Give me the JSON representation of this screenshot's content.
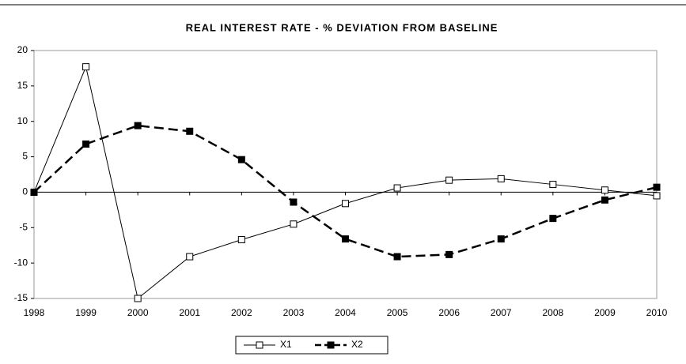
{
  "chart_data": {
    "type": "line",
    "title": "REAL INTEREST RATE - % DEVIATION FROM BASELINE",
    "x": [
      1998,
      1999,
      2000,
      2001,
      2002,
      2003,
      2004,
      2005,
      2006,
      2007,
      2008,
      2009,
      2010
    ],
    "xlim": [
      1998,
      2010
    ],
    "xticks": [
      1998,
      1999,
      2000,
      2001,
      2002,
      2003,
      2004,
      2005,
      2006,
      2007,
      2008,
      2009,
      2010
    ],
    "ylim": [
      -15,
      20
    ],
    "yticks": [
      20,
      15,
      10,
      5,
      0,
      -5,
      -10,
      -15
    ],
    "grid": false,
    "legend": "bottom",
    "series": [
      {
        "name": "X1",
        "color": "#000000",
        "dashed": false,
        "marker_filled": false,
        "values": [
          0,
          17.7,
          -15,
          -9.1,
          -6.7,
          -4.5,
          -1.6,
          0.6,
          1.7,
          1.9,
          1.1,
          0.3,
          -0.5
        ]
      },
      {
        "name": "X2",
        "color": "#000000",
        "dashed": true,
        "marker_filled": true,
        "values": [
          0,
          6.8,
          9.4,
          8.6,
          4.6,
          -1.4,
          -6.6,
          -9.1,
          -8.8,
          -6.6,
          -3.7,
          -1.1,
          0.7
        ]
      }
    ]
  }
}
